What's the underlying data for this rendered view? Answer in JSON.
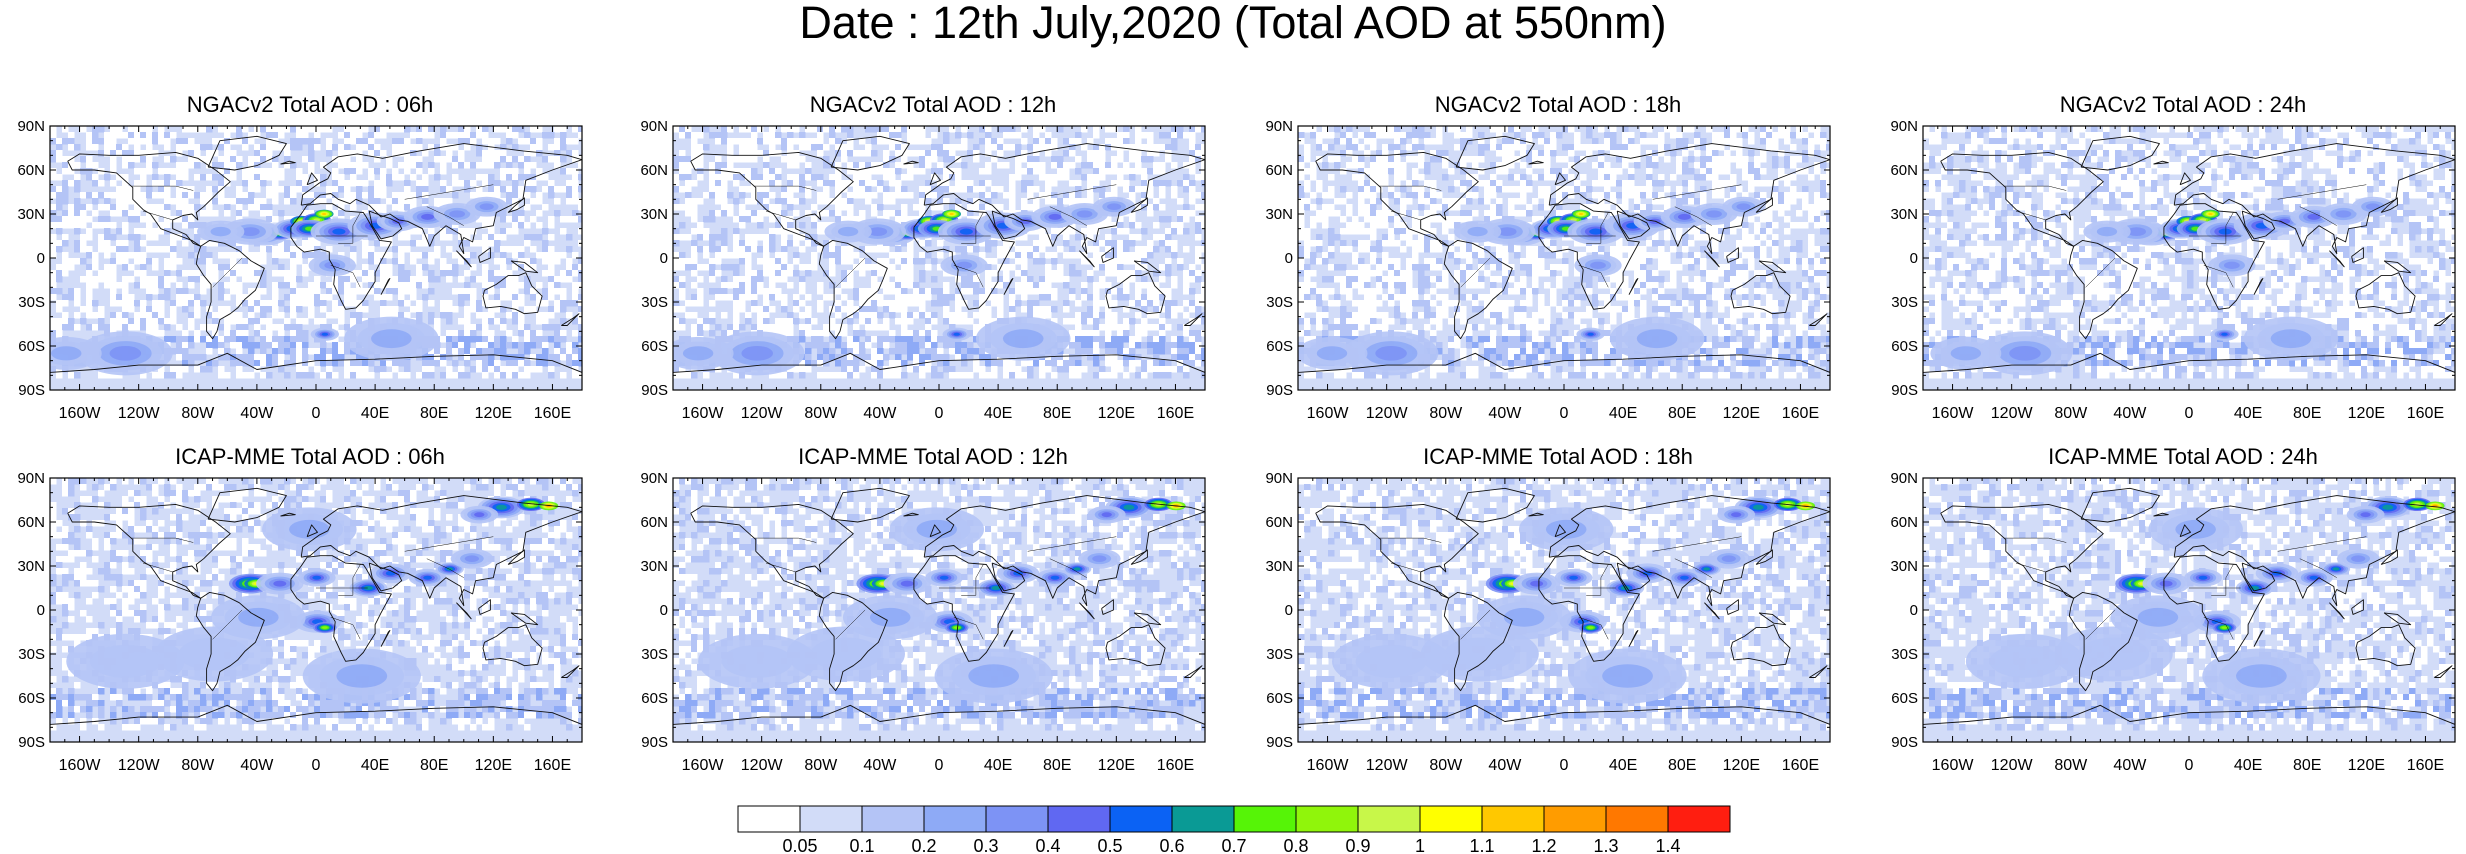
{
  "title": "Date : 12th July,2020 (Total AOD at 550nm)",
  "panels": [
    {
      "title": "NGACv2 Total AOD : 06h"
    },
    {
      "title": "NGACv2 Total AOD : 12h"
    },
    {
      "title": "NGACv2 Total AOD : 18h"
    },
    {
      "title": "NGACv2 Total AOD : 24h"
    },
    {
      "title": "ICAP-MME Total AOD : 06h"
    },
    {
      "title": "ICAP-MME Total AOD : 12h"
    },
    {
      "title": "ICAP-MME Total AOD : 18h"
    },
    {
      "title": "ICAP-MME Total AOD : 24h"
    }
  ],
  "map_axes": {
    "lat_labels": [
      "90N",
      "60N",
      "30N",
      "0",
      "30S",
      "60S",
      "90S"
    ],
    "lon_labels": [
      "160W",
      "120W",
      "80W",
      "40W",
      "0",
      "40E",
      "80E",
      "120E",
      "160E"
    ]
  },
  "colorbar": {
    "labels": [
      "0.05",
      "0.1",
      "0.2",
      "0.3",
      "0.4",
      "0.5",
      "0.6",
      "0.7",
      "0.8",
      "0.9",
      "1",
      "1.1",
      "1.2",
      "1.3",
      "1.4"
    ],
    "colors": [
      "#ffffff",
      "#d2dcf8",
      "#b4c4f6",
      "#8eaaf6",
      "#7d93f5",
      "#6068f2",
      "#0b62f4",
      "#0a9a95",
      "#56f407",
      "#90f50b",
      "#c8f749",
      "#ffff00",
      "#ffc800",
      "#ff9c00",
      "#ff7800",
      "#ff1e10"
    ]
  }
}
